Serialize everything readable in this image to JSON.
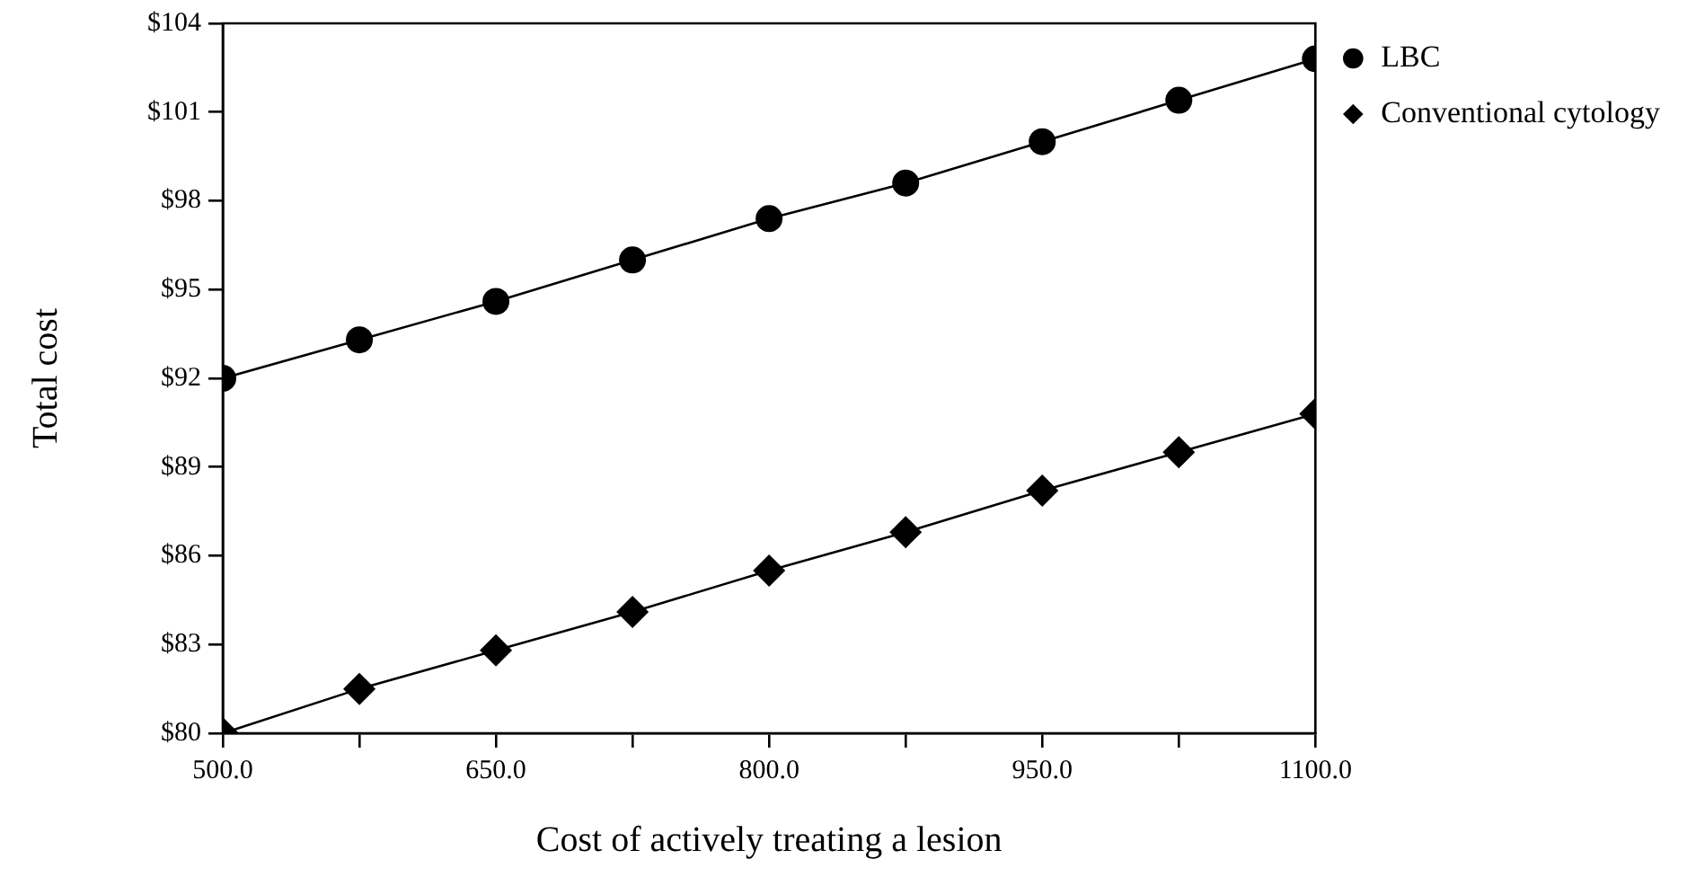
{
  "chart_data": {
    "type": "line",
    "xlabel": "Cost of actively treating a lesion",
    "ylabel": "Total cost",
    "x": [
      500,
      575,
      650,
      725,
      800,
      875,
      950,
      1025,
      1100
    ],
    "series": [
      {
        "name": "LBC",
        "color": "#000000",
        "marker": "circle",
        "values": [
          92,
          93.3,
          94.6,
          96,
          97.4,
          98.6,
          100,
          101.4,
          102.8
        ]
      },
      {
        "name": "Conventional cytology",
        "color": "#000000",
        "marker": "diamond",
        "values": [
          80,
          81.5,
          82.8,
          84.1,
          85.5,
          86.8,
          88.2,
          89.5,
          90.8
        ]
      }
    ],
    "xlim": [
      500,
      1100
    ],
    "xticks": [
      {
        "value": 500,
        "label": "500.0"
      },
      {
        "value": 575,
        "label": null
      },
      {
        "value": 650,
        "label": "650.0"
      },
      {
        "value": 725,
        "label": null
      },
      {
        "value": 800,
        "label": "800.0"
      },
      {
        "value": 875,
        "label": null
      },
      {
        "value": 950,
        "label": "950.0"
      },
      {
        "value": 1025,
        "label": null
      },
      {
        "value": 1100,
        "label": "1100.0"
      }
    ],
    "ylim": [
      80,
      104
    ],
    "yticks": [
      {
        "value": 80,
        "label": "$80"
      },
      {
        "value": 83,
        "label": "$83"
      },
      {
        "value": 86,
        "label": "$86"
      },
      {
        "value": 89,
        "label": "$89"
      },
      {
        "value": 92,
        "label": "$92"
      },
      {
        "value": 95,
        "label": "$95"
      },
      {
        "value": 98,
        "label": "$98"
      },
      {
        "value": 101,
        "label": "$101"
      },
      {
        "value": 104,
        "label": "$104"
      }
    ],
    "grid": false,
    "legend": "top right",
    "line_style": "solid"
  }
}
